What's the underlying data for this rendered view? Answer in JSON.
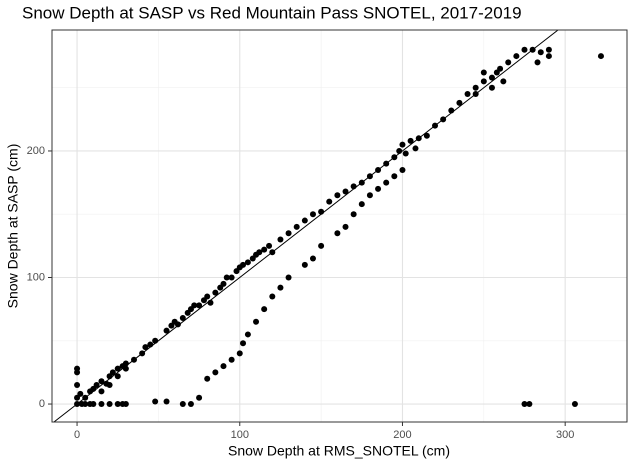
{
  "chart_data": {
    "type": "scatter",
    "title": "Snow Depth at SASP vs Red Mountain Pass SNOTEL, 2017-2019",
    "x_label": "Snow Depth at RMS_SNOTEL (cm)",
    "y_label": "Snow Depth at SASP (cm)",
    "x": [
      0,
      0,
      0,
      0,
      2,
      5,
      8,
      10,
      12,
      15,
      18,
      20,
      22,
      25,
      28,
      30,
      35,
      40,
      42,
      45,
      48,
      55,
      58,
      60,
      62,
      65,
      68,
      70,
      72,
      75,
      78,
      80,
      82,
      85,
      88,
      90,
      92,
      95,
      98,
      100,
      102,
      105,
      108,
      110,
      112,
      115,
      118,
      120,
      125,
      130,
      135,
      140,
      145,
      150,
      155,
      160,
      165,
      170,
      175,
      180,
      185,
      190,
      195,
      198,
      200,
      202,
      205,
      208,
      210,
      215,
      220,
      225,
      230,
      235,
      240,
      245,
      250,
      255,
      258,
      260,
      265,
      270,
      275,
      280,
      285,
      290,
      290,
      283,
      262,
      255,
      250,
      245,
      30,
      25,
      20,
      15,
      10,
      5,
      15,
      20,
      25,
      28,
      30,
      48,
      55,
      65,
      70,
      75,
      80,
      85,
      90,
      95,
      100,
      102,
      105,
      110,
      115,
      120,
      125,
      130,
      140,
      145,
      150,
      160,
      165,
      170,
      175,
      180,
      185,
      190,
      195,
      200,
      275,
      278,
      306,
      322,
      0,
      3,
      8
    ],
    "y": [
      5,
      15,
      25,
      28,
      8,
      5,
      10,
      12,
      15,
      18,
      16,
      22,
      25,
      28,
      30,
      32,
      35,
      40,
      45,
      47,
      50,
      58,
      62,
      65,
      63,
      68,
      72,
      75,
      78,
      78,
      82,
      85,
      80,
      88,
      92,
      95,
      100,
      100,
      105,
      108,
      110,
      112,
      115,
      118,
      120,
      122,
      125,
      120,
      130,
      135,
      140,
      145,
      150,
      152,
      160,
      165,
      168,
      172,
      175,
      180,
      185,
      190,
      195,
      200,
      205,
      198,
      208,
      202,
      210,
      212,
      220,
      225,
      232,
      238,
      245,
      250,
      255,
      258,
      262,
      265,
      270,
      275,
      280,
      280,
      278,
      280,
      275,
      270,
      255,
      250,
      262,
      245,
      28,
      22,
      15,
      10,
      0,
      0,
      0,
      0,
      0,
      0,
      0,
      2,
      2,
      0,
      0,
      5,
      20,
      25,
      30,
      35,
      40,
      48,
      55,
      65,
      75,
      85,
      92,
      100,
      110,
      115,
      125,
      135,
      140,
      150,
      158,
      165,
      170,
      175,
      180,
      185,
      0,
      0,
      0,
      275,
      0,
      0,
      0
    ],
    "color": "#000000",
    "identity_line": true,
    "xlim": [
      -15.4,
      338
    ],
    "ylim": [
      -14.2,
      295.6
    ],
    "xticks": [
      0,
      100,
      200,
      300
    ],
    "yticks": [
      0,
      100,
      200
    ],
    "grid": true,
    "minor_grid": true
  }
}
